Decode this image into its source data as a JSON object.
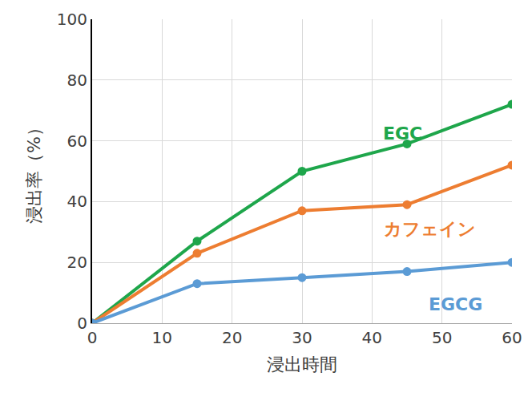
{
  "chart_data": {
    "type": "line",
    "x_label": "浸出時間",
    "y_label": "浸出率（%）",
    "x": [
      0,
      15,
      30,
      45,
      60
    ],
    "series": [
      {
        "name": "EGC",
        "color": "#1ea64b",
        "values": [
          0,
          27,
          50,
          59,
          72
        ]
      },
      {
        "name": "カフェイン",
        "color": "#ed7d31",
        "values": [
          0,
          23,
          37,
          39,
          52
        ]
      },
      {
        "name": "EGCG",
        "color": "#5b9bd5",
        "values": [
          0,
          13,
          15,
          17,
          20
        ]
      }
    ],
    "xlim": [
      0,
      60
    ],
    "xticks": [
      0,
      10,
      20,
      30,
      40,
      50,
      60
    ],
    "ylim": [
      0,
      100
    ],
    "yticks": [
      0,
      20,
      40,
      60,
      80,
      100
    ],
    "grid": true,
    "marker": "circle",
    "line_style": "solid"
  }
}
